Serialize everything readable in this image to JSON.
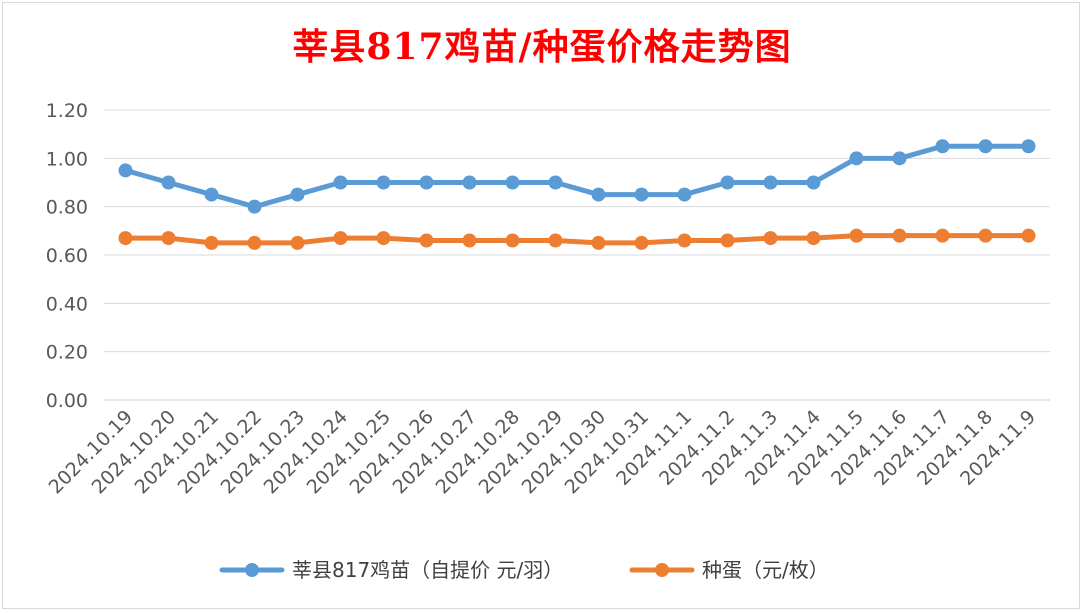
{
  "chart_data": {
    "type": "line",
    "title": "莘县817鸡苗/种蛋价格走势图",
    "xlabel": "",
    "ylabel": "",
    "ylim": [
      0,
      1.2
    ],
    "yticks": [
      "0.00",
      "0.20",
      "0.40",
      "0.60",
      "0.80",
      "1.00",
      "1.20"
    ],
    "grid": true,
    "legend_position": "bottom",
    "categories": [
      "2024.10.19",
      "2024.10.20",
      "2024.10.21",
      "2024.10.22",
      "2024.10.23",
      "2024.10.24",
      "2024.10.25",
      "2024.10.26",
      "2024.10.27",
      "2024.10.28",
      "2024.10.29",
      "2024.10.30",
      "2024.10.31",
      "2024.11.1",
      "2024.11.2",
      "2024.11.3",
      "2024.11.4",
      "2024.11.5",
      "2024.11.6",
      "2024.11.7",
      "2024.11.8",
      "2024.11.9"
    ],
    "series": [
      {
        "name": "莘县817鸡苗（自提价 元/羽）",
        "color": "#5b9bd5",
        "values": [
          0.95,
          0.9,
          0.85,
          0.8,
          0.85,
          0.9,
          0.9,
          0.9,
          0.9,
          0.9,
          0.9,
          0.85,
          0.85,
          0.85,
          0.9,
          0.9,
          0.9,
          1.0,
          1.0,
          1.05,
          1.05,
          1.05
        ]
      },
      {
        "name": "种蛋（元/枚）",
        "color": "#ed7d31",
        "values": [
          0.67,
          0.67,
          0.65,
          0.65,
          0.65,
          0.67,
          0.67,
          0.66,
          0.66,
          0.66,
          0.66,
          0.65,
          0.65,
          0.66,
          0.66,
          0.67,
          0.67,
          0.68,
          0.68,
          0.68,
          0.68,
          0.68
        ]
      }
    ]
  }
}
